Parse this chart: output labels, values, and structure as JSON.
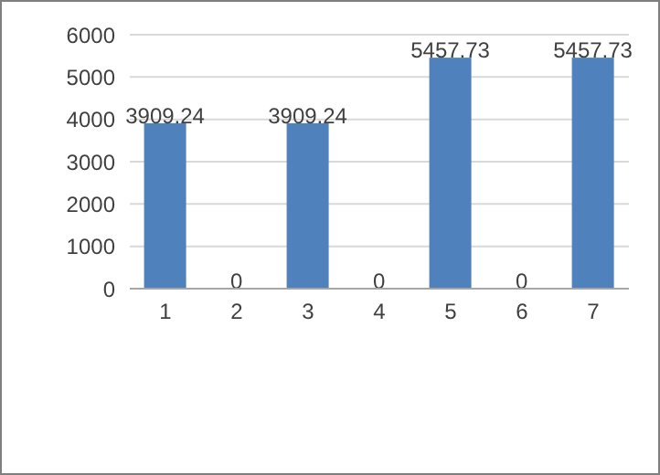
{
  "chart_data": {
    "type": "bar",
    "categories": [
      "1",
      "2",
      "3",
      "4",
      "5",
      "6",
      "7"
    ],
    "values": [
      3909.24,
      0,
      3909.24,
      0,
      5457.73,
      0,
      5457.73
    ],
    "color": "#4f81bd",
    "ylim": [
      0,
      6000
    ],
    "yticks": [
      0,
      1000,
      2000,
      3000,
      4000,
      5000,
      6000
    ],
    "grid": "y",
    "data_labels": true
  }
}
